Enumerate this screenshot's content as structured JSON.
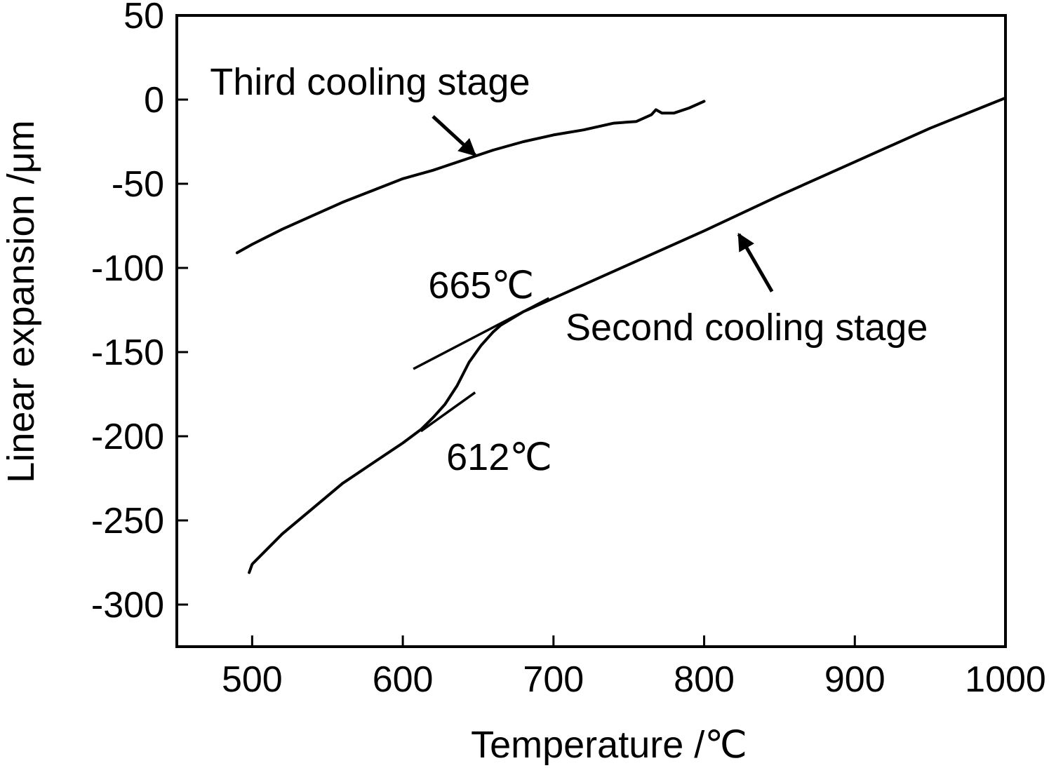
{
  "chart_data": {
    "type": "line",
    "title": "",
    "xlabel": "Temperature /℃",
    "ylabel": "Linear expansion /μm",
    "xlim": [
      450,
      1000
    ],
    "ylim": [
      -325,
      50
    ],
    "x_ticks": [
      500,
      600,
      700,
      800,
      900,
      1000
    ],
    "y_ticks": [
      50,
      0,
      -50,
      -100,
      -150,
      -200,
      -250,
      -300
    ],
    "grid": false,
    "legend": "none",
    "series": [
      {
        "name": "Third cooling stage",
        "x": [
          490,
          500,
          520,
          540,
          560,
          580,
          600,
          620,
          640,
          660,
          680,
          700,
          720,
          740,
          755,
          765,
          768,
          772,
          780,
          790,
          800
        ],
        "y": [
          -91,
          -86,
          -77,
          -69,
          -61,
          -54,
          -47,
          -42,
          -36,
          -30,
          -25,
          -21,
          -18,
          -14,
          -13,
          -9,
          -6,
          -8,
          -8,
          -5,
          -1
        ]
      },
      {
        "name": "Second cooling stage",
        "x": [
          498,
          500,
          520,
          540,
          560,
          580,
          600,
          612,
          620,
          628,
          636,
          644,
          652,
          660,
          665,
          680,
          700,
          750,
          800,
          850,
          900,
          950,
          1000
        ],
        "y": [
          -281,
          -276,
          -258,
          -243,
          -228,
          -216,
          -204,
          -196,
          -189,
          -181,
          -170,
          -156,
          -146,
          -138,
          -134,
          -126,
          -118,
          -98,
          -78,
          -57,
          -37,
          -17,
          1
        ]
      }
    ],
    "tangents": [
      {
        "x": [
          607,
          697
        ],
        "y": [
          -160,
          -118
        ]
      },
      {
        "x": [
          612,
          648
        ],
        "y": [
          -197,
          -174
        ]
      }
    ],
    "annotations": [
      {
        "text": "Third cooling stage",
        "x": 472,
        "y": 3,
        "anchor": "start"
      },
      {
        "text": "Second cooling stage",
        "x": 708,
        "y": -143,
        "anchor": "start"
      },
      {
        "text": "665℃",
        "x": 652,
        "y": -118,
        "anchor": "middle"
      },
      {
        "text": "612℃",
        "x": 664,
        "y": -220,
        "anchor": "middle"
      }
    ],
    "arrows": [
      {
        "from": [
          620,
          -10
        ],
        "to": [
          648,
          -33
        ]
      },
      {
        "from": [
          845,
          -114
        ],
        "to": [
          823,
          -80
        ]
      }
    ]
  }
}
